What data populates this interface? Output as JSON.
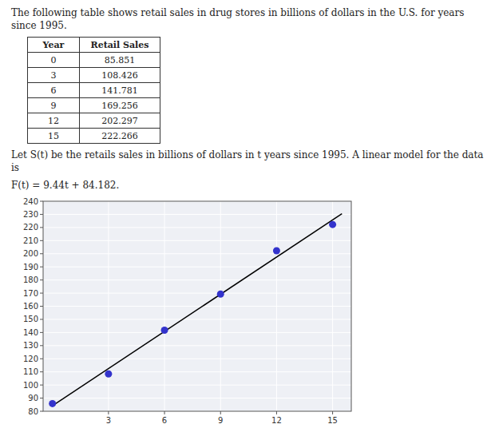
{
  "chart_data": {
    "type": "scatter",
    "title": "The following table shows retail sales in drug stores in billions of dollars in the U.S. for years since 1995.",
    "table": {
      "columns": [
        "Year",
        "Retail Sales"
      ],
      "rows": [
        [
          0,
          85.851
        ],
        [
          3,
          108.426
        ],
        [
          6,
          141.781
        ],
        [
          9,
          169.256
        ],
        [
          12,
          202.297
        ],
        [
          15,
          222.266
        ]
      ]
    },
    "annotations": [
      "Let S(t) be the retails sales in billions of dollars in t years since 1995. A linear model for the data is",
      "F(t) = 9.44t + 84.182."
    ],
    "series": [
      {
        "type": "scatter",
        "color": "#3333cc",
        "marker": "circle",
        "x": [
          0,
          3,
          6,
          9,
          12,
          15
        ],
        "values": [
          85.851,
          108.426,
          141.781,
          169.256,
          202.297,
          222.266
        ]
      },
      {
        "type": "line",
        "color": "#000000",
        "line_style": "solid",
        "x": [
          0,
          15.5
        ],
        "values": [
          84.182,
          230.502
        ]
      }
    ],
    "xlim": [
      -0.5,
      16
    ],
    "ylim": [
      80,
      240
    ],
    "xticks": [
      3,
      6,
      9,
      12,
      15
    ],
    "yticks": [
      80,
      90,
      100,
      110,
      120,
      130,
      140,
      150,
      160,
      170,
      180,
      190,
      200,
      210,
      220,
      230,
      240
    ],
    "grid": true
  }
}
